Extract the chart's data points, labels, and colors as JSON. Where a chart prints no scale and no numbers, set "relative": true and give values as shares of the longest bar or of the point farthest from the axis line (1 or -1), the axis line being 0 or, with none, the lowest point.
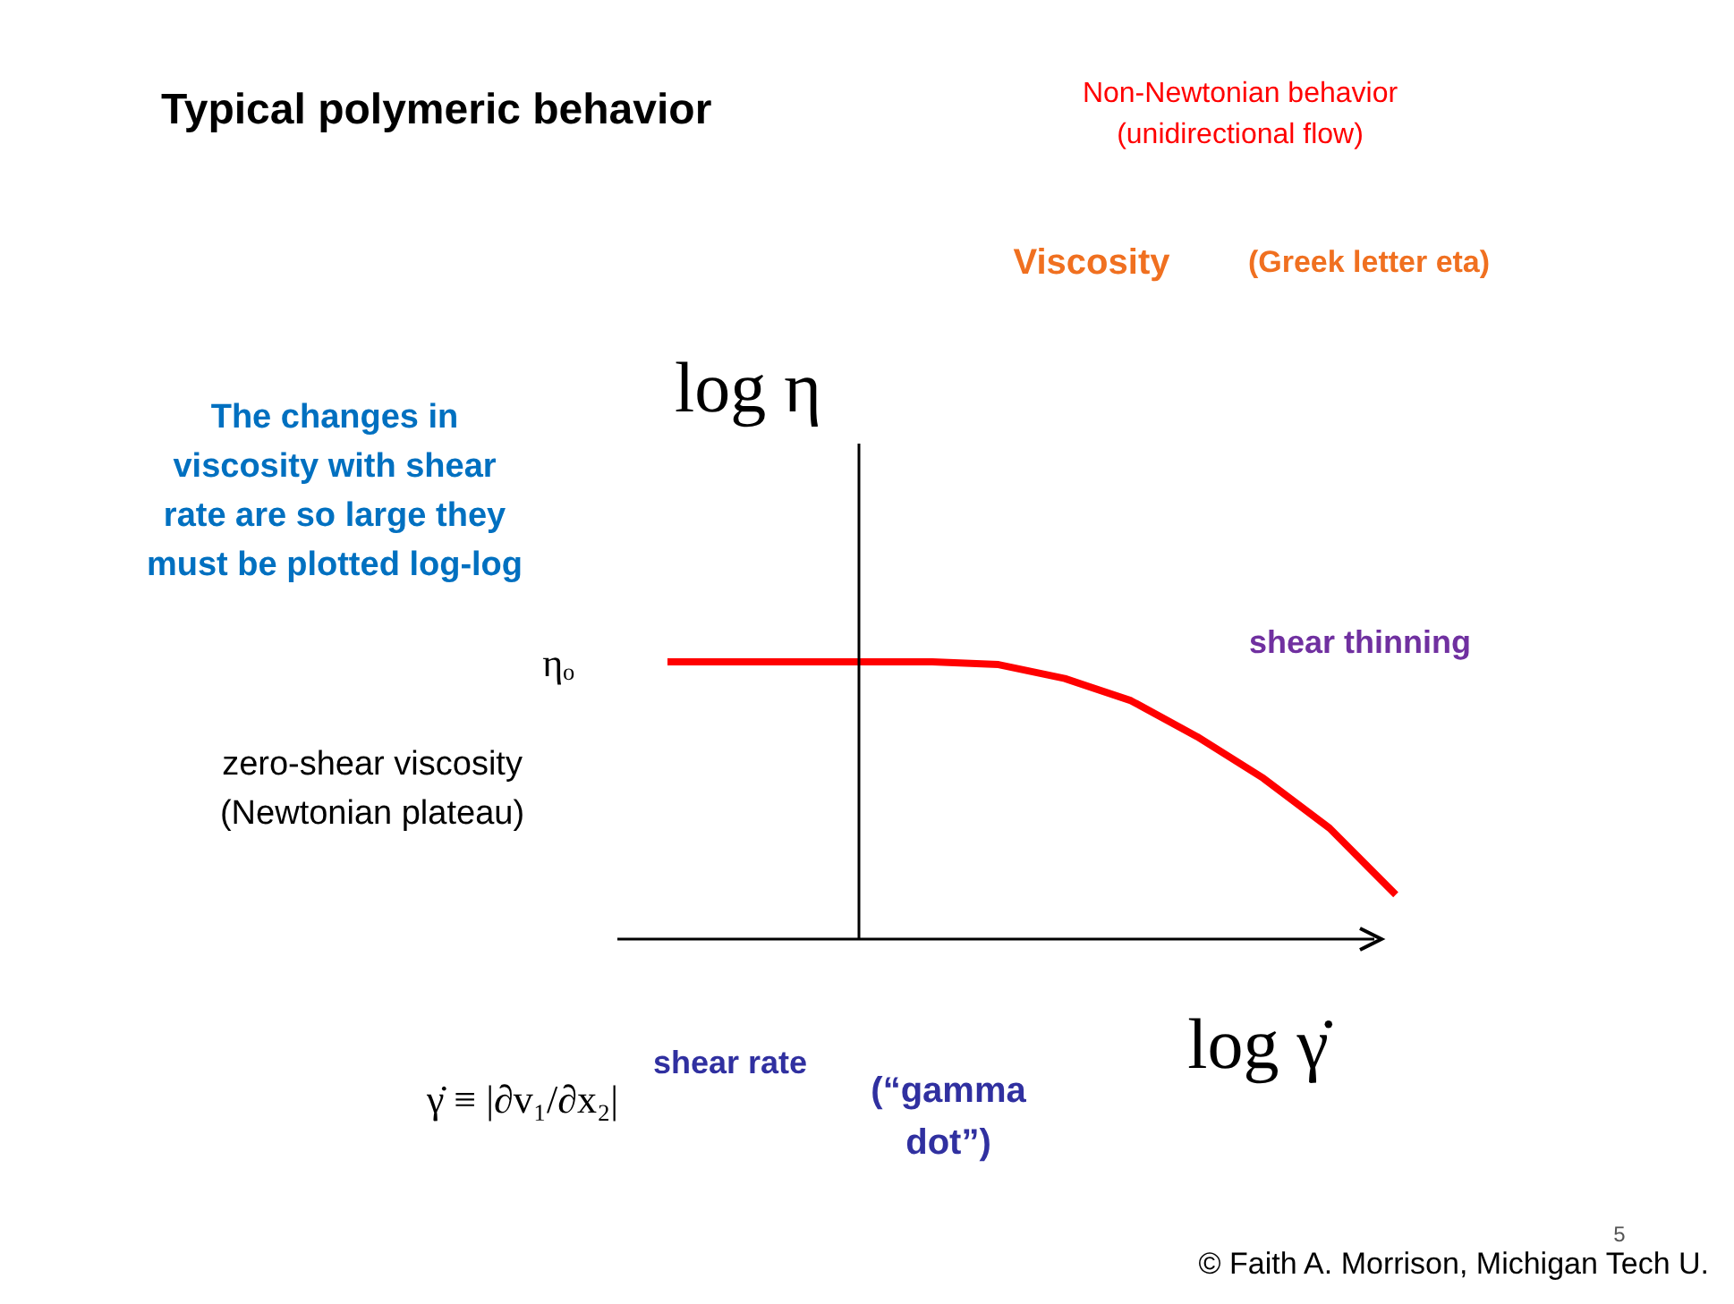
{
  "chart_data": {
    "type": "line",
    "title": "Typical polymeric behavior",
    "subtitle": "Non-Newtonian behavior\n(unidirectional flow)",
    "xlabel": "log γ̇",
    "ylabel": "log η",
    "relative": true,
    "categories": [
      null,
      null,
      null,
      null,
      null,
      null,
      null,
      null,
      null,
      null,
      null,
      null
    ],
    "series": [
      {
        "color": "#ff0000",
        "values": [
          1,
          1,
          1,
          1,
          1,
          0.99,
          0.94,
          0.86,
          0.73,
          0.58,
          0.4,
          0.16
        ]
      }
    ],
    "annotations": [
      "Viscosity",
      "(Greek letter eta)",
      "The changes in\nviscosity with shear\nrate are so large they\nmust be plotted log-log",
      "ηₒ",
      "zero-shear viscosity\n(Newtonian plateau)",
      "shear thinning",
      "γ̇ ≡ |∂v₁/∂x₂|",
      "shear rate",
      "(“gamma\ndot”)",
      "5",
      "© Faith A. Morrison, Michigan Tech U."
    ]
  }
}
